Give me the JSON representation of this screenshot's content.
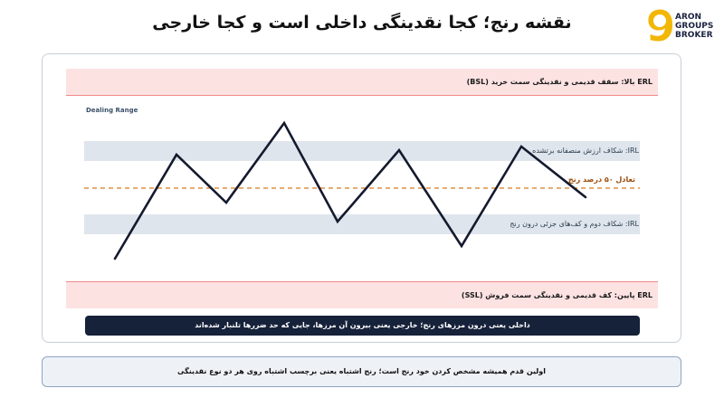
{
  "header": {
    "title": "نقشه رنج؛ کجا نقدینگی داخلی است و کجا خارجی"
  },
  "logo": {
    "mark": "9",
    "line1": "ARON",
    "line2": "GROUPS",
    "line3": "BROKER",
    "color": "#f2b705"
  },
  "diagram": {
    "dealing_range_label": "Dealing Range",
    "erl_top_label": "ERL بالا: سقف قدیمی و نقدینگی سمت خرید (BSL)",
    "erl_bottom_label": "ERL پایین: کف قدیمی و نقدینگی سمت فروش (SSL)",
    "irl_top_label": "IRL: شکاف ارزش منصفانه برتشده",
    "irl_bottom_label": "IRL: شکاف دوم و کف‌های جزئی درون رنج",
    "equilibrium_label": "تعادل ۵۰ درصد رنج",
    "note": "داخلی یعنی درون مرزهای رنج؛ خارجی یعنی بیرون آن مرزها، جایی که حد ضررها تلنبار شده‌اند",
    "colors": {
      "erl_band": "#fde2e2",
      "erl_line": "#f08a8a",
      "irl_band": "#dfe5ec",
      "equilibrium": "#d97a1c",
      "price_path": "#141a2e"
    }
  },
  "footer": {
    "text": "اولین قدم همیشه مشخص کردن خود رنج است؛ رنج اشتباه یعنی برچسب اشتباه روی هر دو نوع نقدینگی"
  }
}
